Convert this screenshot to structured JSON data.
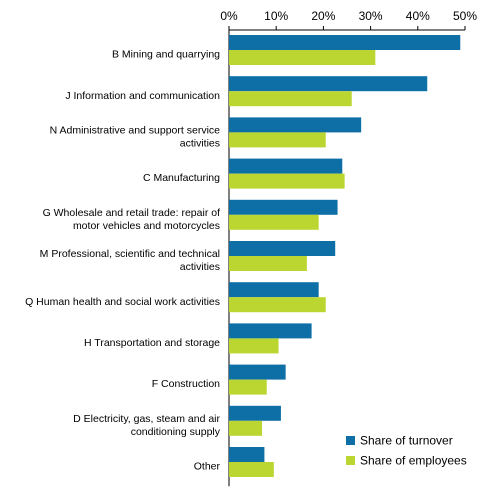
{
  "chart_data": {
    "type": "bar",
    "orientation": "horizontal",
    "categories": [
      "B Mining and quarrying",
      "J Information and communication",
      "N Administrative and support service activities",
      "C Manufacturing",
      "G Wholesale and retail trade: repair of motor vehicles and motorcycles",
      "M Professional, scientific and technical activities",
      "Q Human health and social work activities",
      "H Transportation and storage",
      "F Construction",
      "D Electricity, gas, steam and air conditioning supply",
      "Other"
    ],
    "category_lines": [
      [
        "B Mining and quarrying"
      ],
      [
        "J Information and communication"
      ],
      [
        "N Administrative and support service",
        "activities"
      ],
      [
        "C Manufacturing"
      ],
      [
        "G Wholesale and retail trade: repair of",
        "motor vehicles and motorcycles"
      ],
      [
        "M Professional, scientific and technical",
        "activities"
      ],
      [
        "Q Human health and social work activities"
      ],
      [
        "H Transportation and storage"
      ],
      [
        "F Construction"
      ],
      [
        "D Electricity, gas, steam and air",
        "conditioning supply"
      ],
      [
        "Other"
      ]
    ],
    "series": [
      {
        "name": "Share of turnover",
        "color": "#0e6ea6",
        "values": [
          49,
          42,
          28,
          24,
          23,
          22.5,
          19,
          17.5,
          12,
          11,
          7.5
        ]
      },
      {
        "name": "Share of employees",
        "color": "#bcd631",
        "values": [
          31,
          26,
          20.5,
          24.5,
          19,
          16.5,
          20.5,
          10.5,
          8,
          7,
          9.5
        ]
      }
    ],
    "xlim": [
      0,
      50
    ],
    "xticks": [
      0,
      10,
      20,
      30,
      40,
      50
    ],
    "tick_labels": [
      "0%",
      "10%",
      "20%",
      "30%",
      "40%",
      "50%"
    ],
    "axis_position": "top",
    "grid": false,
    "legend_position": "bottom-right",
    "title": "",
    "xlabel": "",
    "ylabel": ""
  }
}
